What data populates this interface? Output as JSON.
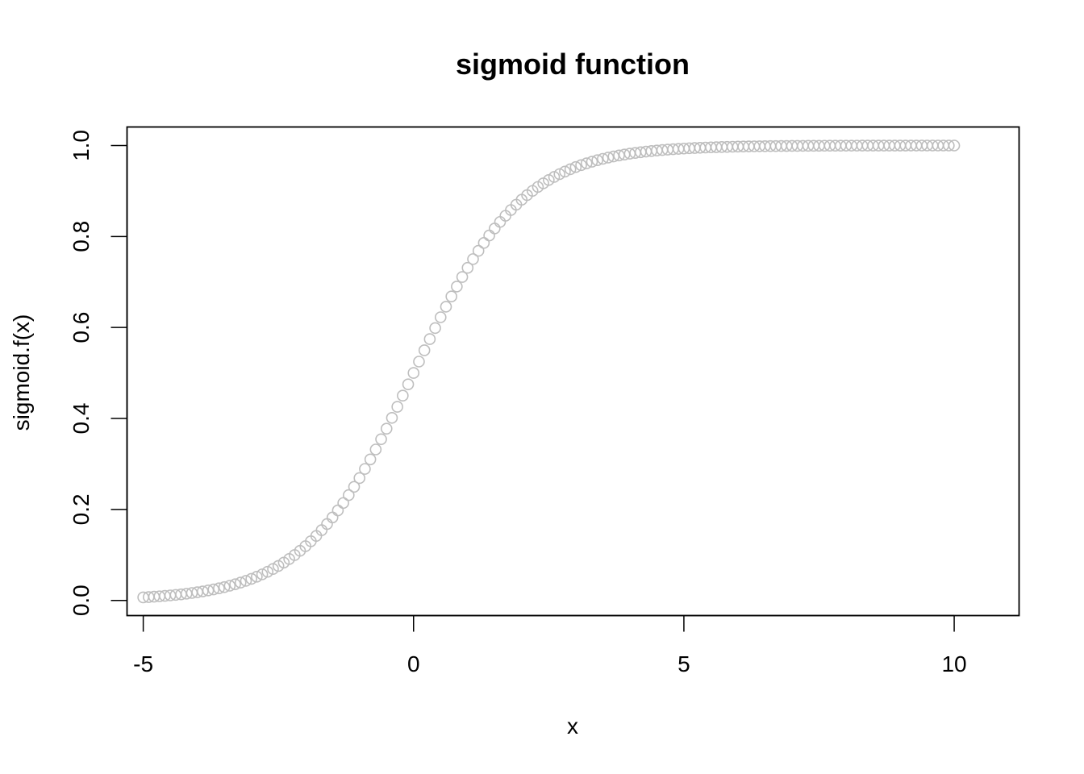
{
  "chart_data": {
    "type": "scatter",
    "title": "sigmoid function",
    "xlabel": "x",
    "ylabel": "sigmoid.f(x)",
    "xlim": [
      -5.3,
      11.2
    ],
    "ylim": [
      -0.0333,
      1.0407
    ],
    "x_ticks": [
      -5,
      0,
      5,
      10
    ],
    "y_ticks": [
      0.0,
      0.2,
      0.4,
      0.6,
      0.8,
      1.0
    ],
    "x_tick_labels": [
      "-5",
      "0",
      "5",
      "10"
    ],
    "y_tick_labels": [
      "0.0",
      "0.2",
      "0.4",
      "0.6",
      "0.8",
      "1.0"
    ],
    "grid": false,
    "point_color": "#bebebe",
    "marker": "open-circle",
    "series": [
      {
        "function": "1/(1+exp(-x))",
        "x_start": -5,
        "x_end": 10,
        "x_step": 0.1
      }
    ]
  }
}
